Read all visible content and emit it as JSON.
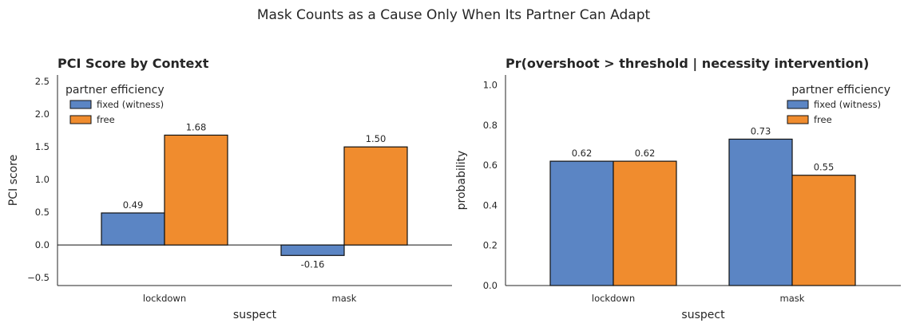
{
  "suptitle": "Mask Counts as a Cause Only When Its Partner Can Adapt",
  "colors": {
    "fixed": "#5b85c4",
    "free": "#f08c2e",
    "edge": "#111111",
    "text": "#262626"
  },
  "chart_data": [
    {
      "type": "bar",
      "title": "PCI Score by Context",
      "xlabel": "suspect",
      "ylabel": "PCI score",
      "categories": [
        "lockdown",
        "mask"
      ],
      "series": [
        {
          "name": "fixed (witness)",
          "values": [
            0.49,
            -0.16
          ],
          "labels": [
            "0.49",
            "-0.16"
          ]
        },
        {
          "name": "free",
          "values": [
            1.68,
            1.5
          ],
          "labels": [
            "1.68",
            "1.50"
          ]
        }
      ],
      "ylim": [
        -0.62,
        2.6
      ],
      "yticks": [
        -0.5,
        0.0,
        0.5,
        1.0,
        1.5,
        2.0,
        2.5
      ],
      "ytick_labels": [
        "−0.5",
        "0.0",
        "0.5",
        "1.0",
        "1.5",
        "2.0",
        "2.5"
      ],
      "zero_line": true,
      "grid": false,
      "legend": {
        "title": "partner efficiency",
        "placement": "upper-left"
      }
    },
    {
      "type": "bar",
      "title": "Pr(overshoot > threshold  |  necessity intervention)",
      "xlabel": "suspect",
      "ylabel": "probability",
      "categories": [
        "lockdown",
        "mask"
      ],
      "series": [
        {
          "name": "fixed (witness)",
          "values": [
            0.62,
            0.73
          ],
          "labels": [
            "0.62",
            "0.73"
          ]
        },
        {
          "name": "free",
          "values": [
            0.62,
            0.55
          ],
          "labels": [
            "0.62",
            "0.55"
          ]
        }
      ],
      "ylim": [
        0.0,
        1.05
      ],
      "yticks": [
        0.0,
        0.2,
        0.4,
        0.6,
        0.8,
        1.0
      ],
      "ytick_labels": [
        "0.0",
        "0.2",
        "0.4",
        "0.6",
        "0.8",
        "1.0"
      ],
      "zero_line": false,
      "grid": false,
      "legend": {
        "title": "partner efficiency",
        "placement": "upper-right"
      }
    }
  ]
}
